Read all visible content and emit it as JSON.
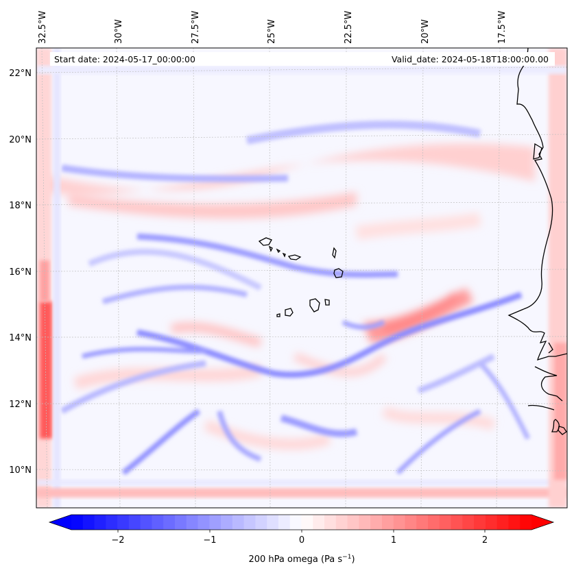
{
  "header": {
    "start_date": "Start date: 2024-05-17_00:00:00",
    "valid_date": "Valid_date: 2024-05-18T18:00:00.00"
  },
  "map": {
    "field": "omega",
    "lon_labels": [
      "32.5°W",
      "30°W",
      "27.5°W",
      "25°W",
      "22.5°W",
      "20°W",
      "17.5°W"
    ],
    "lat_labels": [
      "22°N",
      "20°N",
      "18°N",
      "16°N",
      "14°N",
      "12°N",
      "10°N"
    ],
    "gridlines": true,
    "coastline_color": "#000000"
  },
  "colorbar": {
    "label_prefix": "200 hPa omega (Pa s",
    "label_exponent": "−1",
    "label_suffix": ")",
    "ticks": [
      "−2",
      "−1",
      "0",
      "1",
      "2"
    ],
    "range": [
      -2.5,
      2.5
    ],
    "colormap": "bwr",
    "low_color": "#0000ff",
    "mid_color": "#ffffff",
    "high_color": "#ff0000",
    "levels": 40
  }
}
